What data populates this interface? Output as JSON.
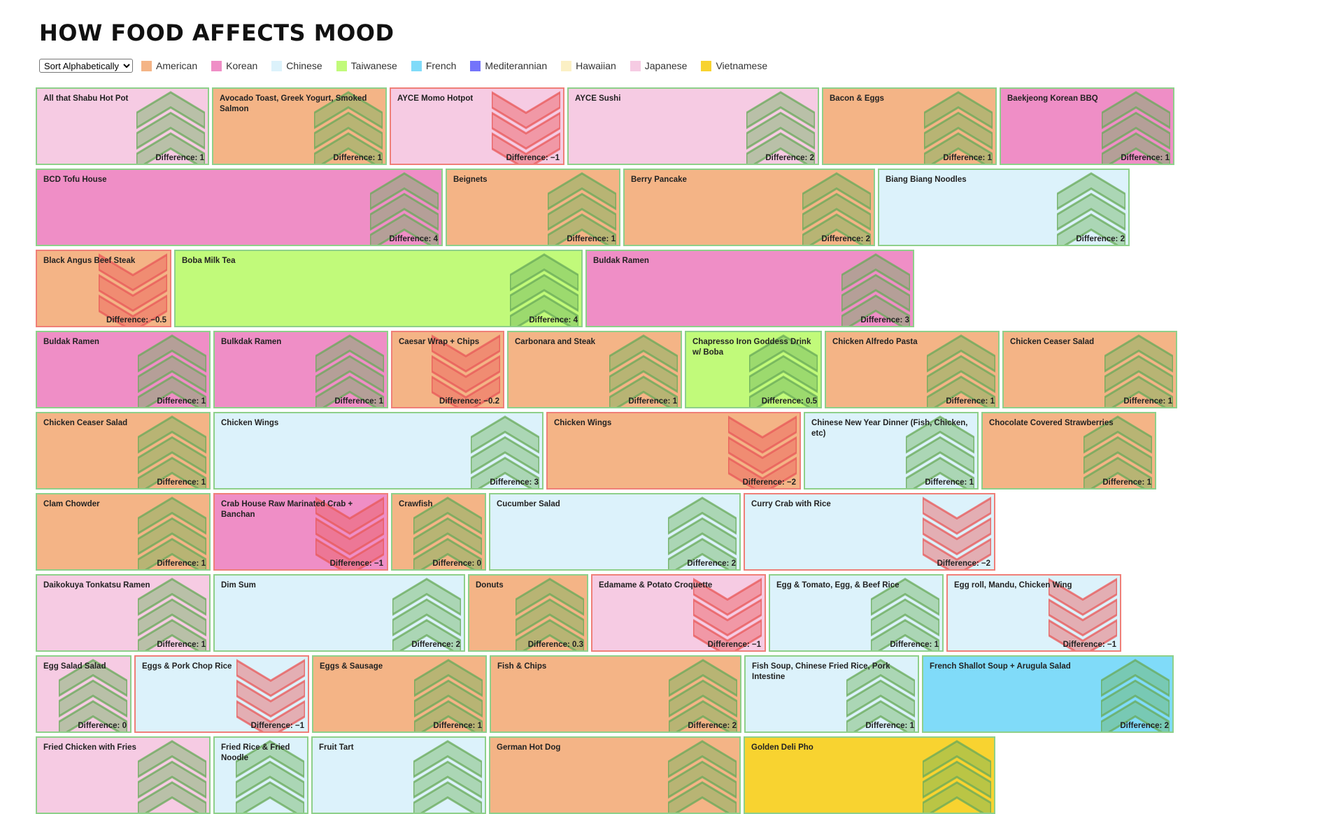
{
  "page": {
    "title": "HOW FOOD AFFECTS MOOD"
  },
  "controls": {
    "sort": {
      "selected": "Sort Alphabetically",
      "options": [
        "Sort Alphabetically"
      ]
    }
  },
  "cuisines": {
    "American": "#f4b486",
    "Korean": "#ef8ec6",
    "Chinese": "#dcf2fb",
    "Taiwanese": "#c1fa7a",
    "French": "#80dbf9",
    "Mediterannian": "#7474fa",
    "Hawaiian": "#fbf0c5",
    "Japanese": "#f6cbe3",
    "Vietnamese": "#f8d330"
  },
  "legend": [
    "American",
    "Korean",
    "Chinese",
    "Taiwanese",
    "French",
    "Mediterannian",
    "Hawaiian",
    "Japanese",
    "Vietnamese"
  ],
  "diff_label": "Difference:",
  "rows": [
    [
      {
        "name": "All that Shabu Hot Pot",
        "cuisine": "Japanese",
        "diff": 1
      },
      {
        "name": "Avocado Toast, Greek Yogurt, Smoked Salmon",
        "cuisine": "American",
        "diff": 1
      },
      {
        "name": "AYCE Momo Hotpot",
        "cuisine": "Japanese",
        "diff": -1
      },
      {
        "name": "AYCE Sushi",
        "cuisine": "Japanese",
        "diff": 2
      },
      {
        "name": "Bacon & Eggs",
        "cuisine": "American",
        "diff": 1
      },
      {
        "name": "Baekjeong Korean BBQ",
        "cuisine": "Korean",
        "diff": 1
      }
    ],
    [
      {
        "name": "BCD Tofu House",
        "cuisine": "Korean",
        "diff": 4
      },
      {
        "name": "Beignets",
        "cuisine": "American",
        "diff": 1
      },
      {
        "name": "Berry Pancake",
        "cuisine": "American",
        "diff": 2
      },
      {
        "name": "Biang Biang Noodles",
        "cuisine": "Chinese",
        "diff": 2
      }
    ],
    [
      {
        "name": "Black Angus Beef Steak",
        "cuisine": "American",
        "diff": -0.5
      },
      {
        "name": "Boba Milk Tea",
        "cuisine": "Taiwanese",
        "diff": 4
      },
      {
        "name": "Buldak Ramen",
        "cuisine": "Korean",
        "diff": 3
      }
    ],
    [
      {
        "name": "Buldak Ramen",
        "cuisine": "Korean",
        "diff": 1
      },
      {
        "name": "Bulkdak Ramen",
        "cuisine": "Korean",
        "diff": 1
      },
      {
        "name": "Caesar Wrap + Chips",
        "cuisine": "American",
        "diff": -0.2
      },
      {
        "name": "Carbonara and Steak",
        "cuisine": "American",
        "diff": 1
      },
      {
        "name": "Chapresso Iron Goddess Drink w/ Boba",
        "cuisine": "Taiwanese",
        "diff": 0.5
      },
      {
        "name": "Chicken Alfredo Pasta",
        "cuisine": "American",
        "diff": 1
      },
      {
        "name": "Chicken Ceaser Salad",
        "cuisine": "American",
        "diff": 1
      }
    ],
    [
      {
        "name": "Chicken Ceaser Salad",
        "cuisine": "American",
        "diff": 1
      },
      {
        "name": "Chicken Wings",
        "cuisine": "Chinese",
        "diff": 3
      },
      {
        "name": "Chicken Wings",
        "cuisine": "American",
        "diff": -2
      },
      {
        "name": "Chinese New Year Dinner (Fish, Chicken, etc)",
        "cuisine": "Chinese",
        "diff": 1
      },
      {
        "name": "Chocolate Covered Strawberries",
        "cuisine": "American",
        "diff": 1
      }
    ],
    [
      {
        "name": "Clam Chowder",
        "cuisine": "American",
        "diff": 1
      },
      {
        "name": "Crab House Raw Marinated Crab + Banchan",
        "cuisine": "Korean",
        "diff": -1
      },
      {
        "name": "Crawfish",
        "cuisine": "American",
        "diff": 0
      },
      {
        "name": "Cucumber Salad",
        "cuisine": "Chinese",
        "diff": 2
      },
      {
        "name": "Curry Crab with Rice",
        "cuisine": "Chinese",
        "diff": -2
      }
    ],
    [
      {
        "name": "Daikokuya Tonkatsu Ramen",
        "cuisine": "Japanese",
        "diff": 1
      },
      {
        "name": "Dim Sum",
        "cuisine": "Chinese",
        "diff": 2
      },
      {
        "name": "Donuts",
        "cuisine": "American",
        "diff": 0.3
      },
      {
        "name": "Edamame & Potato Croquette",
        "cuisine": "Japanese",
        "diff": -1
      },
      {
        "name": "Egg & Tomato, Egg, & Beef Rice",
        "cuisine": "Chinese",
        "diff": 1
      },
      {
        "name": "Egg roll, Mandu, Chicken Wing",
        "cuisine": "Chinese",
        "diff": -1
      }
    ],
    [
      {
        "name": "Egg Salad Salad",
        "cuisine": "Japanese",
        "diff": 0
      },
      {
        "name": "Eggs & Pork Chop Rice",
        "cuisine": "Chinese",
        "diff": -1
      },
      {
        "name": "Eggs & Sausage",
        "cuisine": "American",
        "diff": 1
      },
      {
        "name": "Fish & Chips",
        "cuisine": "American",
        "diff": 2
      },
      {
        "name": "Fish Soup, Chinese Fried Rice, Pork Intestine",
        "cuisine": "Chinese",
        "diff": 1
      },
      {
        "name": "French Shallot Soup + Arugula Salad",
        "cuisine": "French",
        "diff": 2
      }
    ],
    [
      {
        "name": "Fried Chicken with Fries",
        "cuisine": "Japanese",
        "diff": null
      },
      {
        "name": "Fried Rice & Fried Noodle",
        "cuisine": "Chinese",
        "diff": null
      },
      {
        "name": "Fruit Tart",
        "cuisine": "Chinese",
        "diff": null
      },
      {
        "name": "German Hot Dog",
        "cuisine": "American",
        "diff": null
      },
      {
        "name": "Golden Deli Pho",
        "cuisine": "Vietnamese",
        "diff": null
      }
    ]
  ]
}
